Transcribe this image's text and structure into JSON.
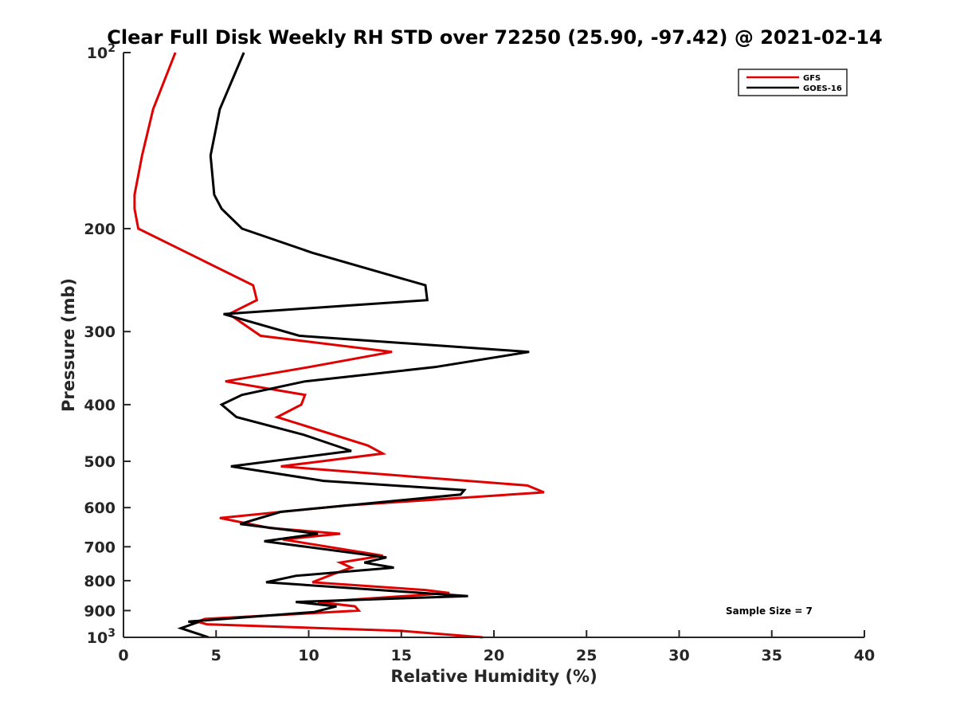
{
  "chart_data": {
    "type": "line",
    "title": "Clear Full Disk Weekly RH STD over 72250 (25.90, -97.42) @ 2021-02-14",
    "xlabel": "Relative Humidity (%)",
    "ylabel": "Pressure (mb)",
    "xlim": [
      0,
      40
    ],
    "ylim": [
      100,
      1000
    ],
    "yscale": "log",
    "yreversed": true,
    "grid": false,
    "legend_position": "top-right",
    "x_ticks": [
      "0",
      "5",
      "10",
      "15",
      "20",
      "25",
      "30",
      "35",
      "40"
    ],
    "y_ticks": [
      {
        "value": 100,
        "base": "10",
        "exp": "2"
      },
      {
        "value": 200,
        "label": "200"
      },
      {
        "value": 300,
        "label": "300"
      },
      {
        "value": 400,
        "label": "400"
      },
      {
        "value": 500,
        "label": "500"
      },
      {
        "value": 600,
        "label": "600"
      },
      {
        "value": 700,
        "label": "700"
      },
      {
        "value": 800,
        "label": "800"
      },
      {
        "value": 900,
        "label": "900"
      },
      {
        "value": 1000,
        "base": "10",
        "exp": "3"
      }
    ],
    "annotation": "Sample Size = 7",
    "series": [
      {
        "name": "GFS",
        "color": "#e00000",
        "points": [
          [
            2.8,
            100
          ],
          [
            1.6,
            125
          ],
          [
            1.0,
            150
          ],
          [
            0.6,
            175
          ],
          [
            0.6,
            185
          ],
          [
            0.8,
            200
          ],
          [
            7.0,
            250
          ],
          [
            7.2,
            265
          ],
          [
            5.7,
            280
          ],
          [
            7.4,
            305
          ],
          [
            14.5,
            325
          ],
          [
            10.0,
            345
          ],
          [
            5.5,
            365
          ],
          [
            9.8,
            385
          ],
          [
            9.6,
            400
          ],
          [
            8.3,
            420
          ],
          [
            13.2,
            470
          ],
          [
            14.0,
            485
          ],
          [
            8.5,
            510
          ],
          [
            21.8,
            550
          ],
          [
            22.7,
            565
          ],
          [
            12.0,
            595
          ],
          [
            5.2,
            625
          ],
          [
            7.9,
            650
          ],
          [
            11.7,
            665
          ],
          [
            8.6,
            680
          ],
          [
            14.0,
            725
          ],
          [
            11.7,
            745
          ],
          [
            12.3,
            760
          ],
          [
            11.3,
            780
          ],
          [
            10.2,
            805
          ],
          [
            16.3,
            830
          ],
          [
            17.6,
            840
          ],
          [
            10.5,
            870
          ],
          [
            12.5,
            885
          ],
          [
            12.7,
            900
          ],
          [
            10.0,
            910
          ],
          [
            4.4,
            930
          ],
          [
            4.0,
            940
          ],
          [
            4.5,
            950
          ],
          [
            15.0,
            975
          ],
          [
            19.4,
            1000
          ]
        ]
      },
      {
        "name": "GOES-16",
        "color": "#000000",
        "points": [
          [
            6.5,
            100
          ],
          [
            5.2,
            125
          ],
          [
            4.7,
            150
          ],
          [
            4.9,
            175
          ],
          [
            5.3,
            185
          ],
          [
            6.4,
            200
          ],
          [
            10.2,
            220
          ],
          [
            16.3,
            250
          ],
          [
            16.4,
            265
          ],
          [
            5.4,
            280
          ],
          [
            9.5,
            305
          ],
          [
            21.9,
            325
          ],
          [
            16.8,
            345
          ],
          [
            9.8,
            365
          ],
          [
            6.4,
            385
          ],
          [
            5.3,
            400
          ],
          [
            6.1,
            420
          ],
          [
            9.7,
            450
          ],
          [
            12.3,
            480
          ],
          [
            5.8,
            510
          ],
          [
            10.8,
            540
          ],
          [
            18.4,
            560
          ],
          [
            18.2,
            570
          ],
          [
            8.5,
            610
          ],
          [
            6.3,
            640
          ],
          [
            10.5,
            665
          ],
          [
            7.6,
            685
          ],
          [
            14.2,
            730
          ],
          [
            13.0,
            745
          ],
          [
            14.6,
            760
          ],
          [
            9.3,
            785
          ],
          [
            7.7,
            805
          ],
          [
            18.6,
            850
          ],
          [
            9.3,
            870
          ],
          [
            11.5,
            885
          ],
          [
            10.3,
            905
          ],
          [
            3.5,
            940
          ],
          [
            3.9,
            945
          ],
          [
            3.1,
            965
          ],
          [
            4.6,
            1000
          ]
        ]
      }
    ]
  }
}
